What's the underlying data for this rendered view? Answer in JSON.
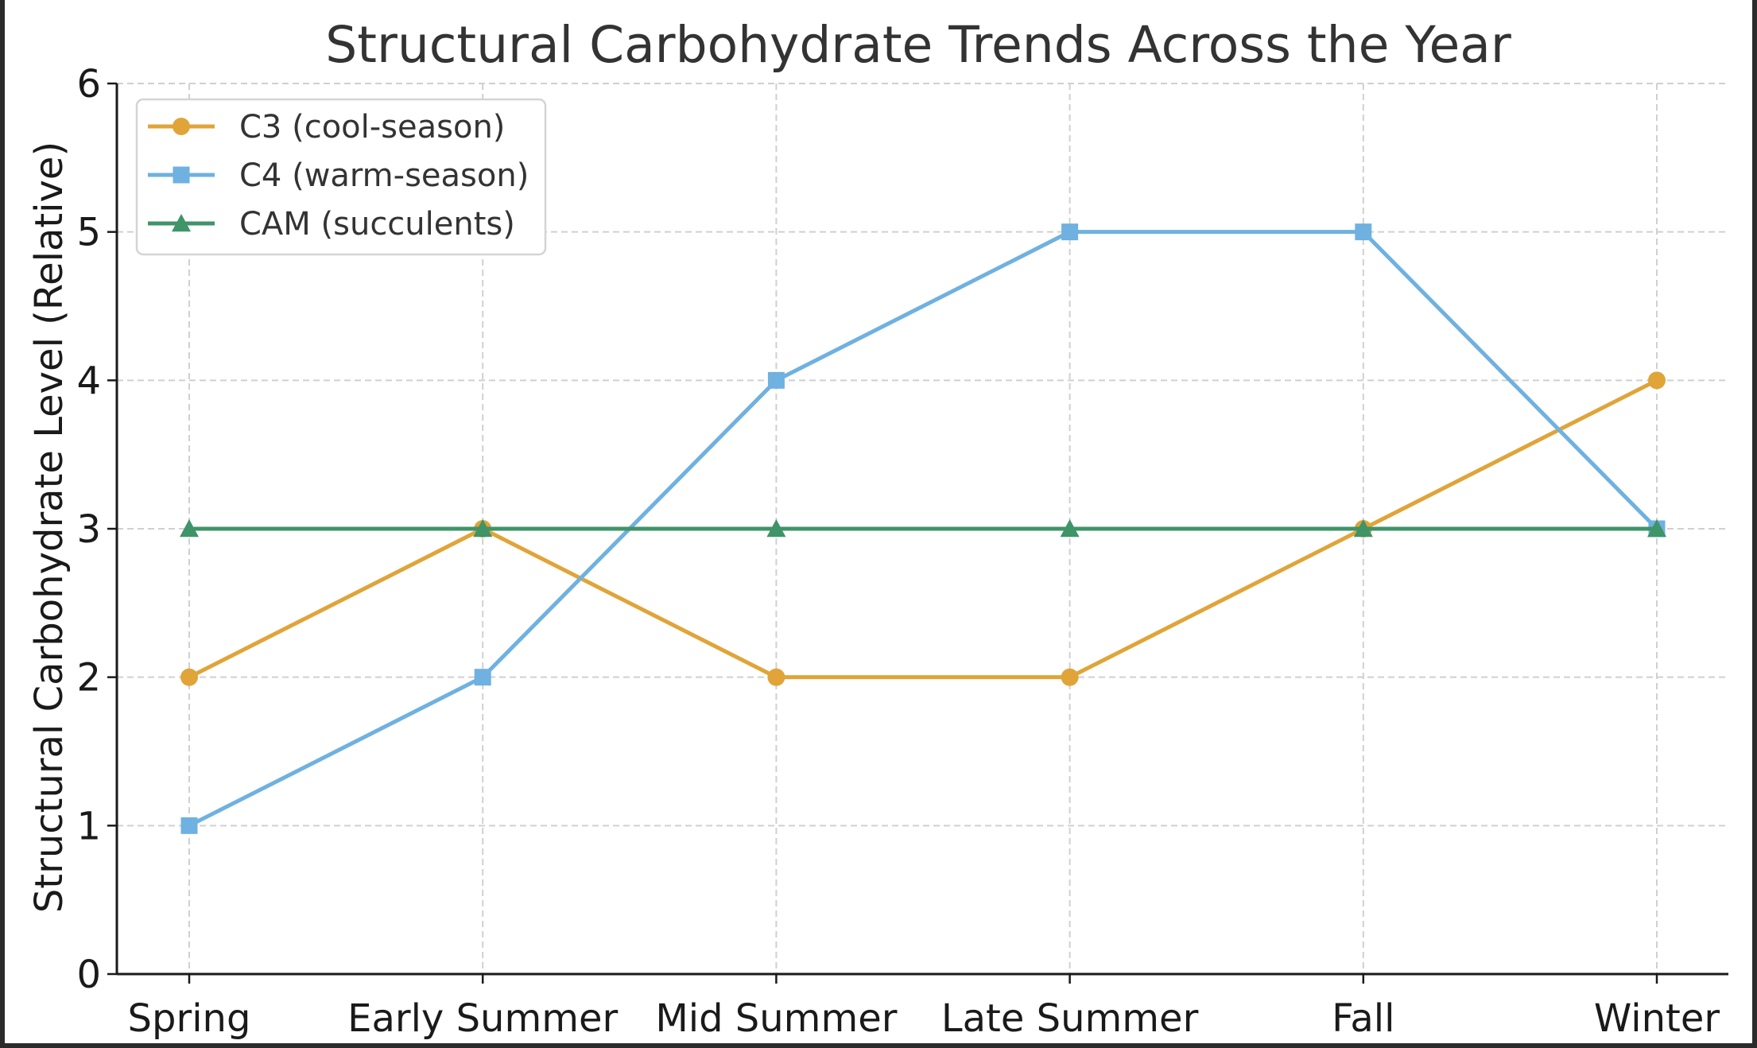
{
  "chart_data": {
    "type": "line",
    "title": "Structural Carbohydrate Trends Across the Year",
    "xlabel": "",
    "ylabel": "Structural Carbohydrate Level (Relative)",
    "categories": [
      "Spring",
      "Early Summer",
      "Mid Summer",
      "Late Summer",
      "Fall",
      "Winter"
    ],
    "ylim": [
      0,
      6
    ],
    "yticks": [
      "0",
      "1",
      "2",
      "3",
      "4",
      "5",
      "6"
    ],
    "grid": true,
    "legend_position": "top-left",
    "series": [
      {
        "name": "C3 (cool-season)",
        "values": [
          2,
          3,
          2,
          2,
          3,
          4
        ],
        "color": "#e0a438",
        "marker": "circle"
      },
      {
        "name": "C4 (warm-season)",
        "values": [
          1,
          2,
          4,
          5,
          5,
          3
        ],
        "color": "#6fb1e0",
        "marker": "square"
      },
      {
        "name": "CAM (succulents)",
        "values": [
          3,
          3,
          3,
          3,
          3,
          3
        ],
        "color": "#3f9468",
        "marker": "triangle"
      }
    ]
  }
}
